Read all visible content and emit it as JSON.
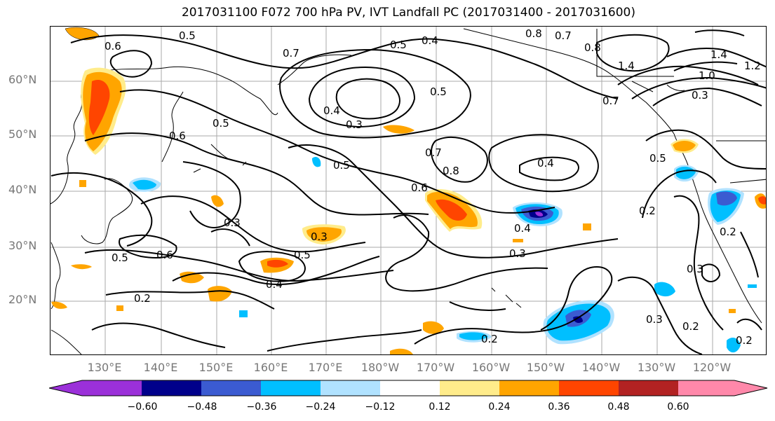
{
  "title": "2017031100 F072 700 hPa PV, IVT Landfall PC (2017031400 - 2017031600)",
  "latitude_labels": [
    "60°N",
    "50°N",
    "40°N",
    "30°N",
    "20°N"
  ],
  "longitude_labels": [
    "130°E",
    "140°E",
    "150°E",
    "160°E",
    "170°E",
    "180°W",
    "170°W",
    "160°W",
    "150°W",
    "140°W",
    "130°W",
    "120°W"
  ],
  "contour_labels": [
    "0.6",
    "0.5",
    "0.7",
    "0.5",
    "0.4",
    "0.8",
    "0.7",
    "0.8",
    "1.4",
    "1.0",
    "1.2",
    "1.4",
    "0.5",
    "0.4",
    "0.3",
    "0.7",
    "0.3",
    "0.5",
    "0.6",
    "0.5",
    "0.7",
    "0.8",
    "0.4",
    "0.5",
    "0.6",
    "0.4",
    "0.3",
    "0.2",
    "0.3",
    "0.3",
    "0.5",
    "0.6",
    "0.5",
    "0.4",
    "0.2",
    "0.3",
    "0.2",
    "0.2",
    "0.3",
    "0.2",
    "0.2"
  ],
  "colorbar": {
    "colors": [
      "#9b30d9",
      "#00008b",
      "#3b5bd1",
      "#00bfff",
      "#b0e2ff",
      "#ffffff",
      "#ffec8b",
      "#ffa500",
      "#ff4500",
      "#b22222",
      "#ff88aa"
    ],
    "tick_labels": [
      "−0.60",
      "−0.48",
      "−0.36",
      "−0.24",
      "−0.12",
      "0.12",
      "0.24",
      "0.36",
      "0.48",
      "0.60"
    ]
  }
}
